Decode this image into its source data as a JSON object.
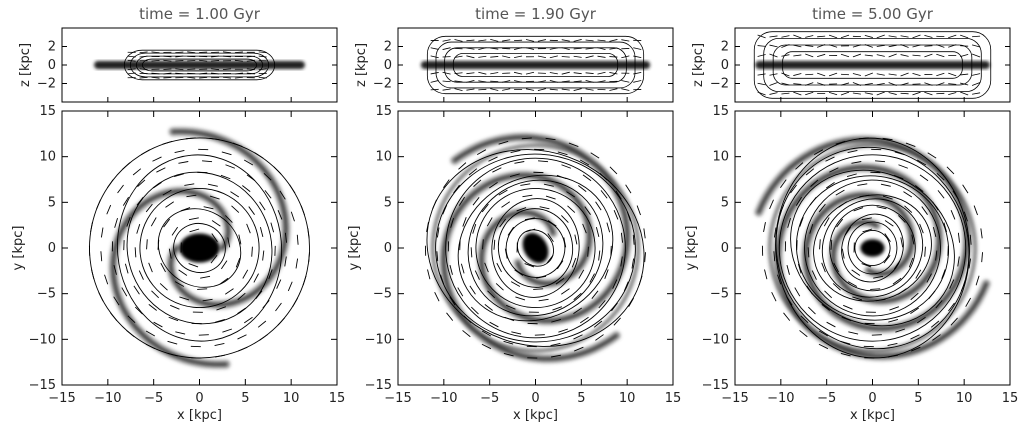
{
  "panels": [
    {
      "title": "time =   1.00 Gyr",
      "gas_structure": "open-spiral-arms",
      "arm_winding": 1.0,
      "core_size": 1.0
    },
    {
      "title": "time =   1.90 Gyr",
      "gas_structure": "tightly-wound-spiral-with-bar",
      "arm_winding": 1.6,
      "core_size": 0.8
    },
    {
      "title": "time =   5.00 Gyr",
      "gas_structure": "ring-dominated-disc",
      "arm_winding": 2.2,
      "core_size": 0.6
    }
  ],
  "axes": {
    "x_label": "x [kpc]",
    "y_label": "y [kpc]",
    "z_label": "z [kpc]",
    "x_ticks": [
      "−15",
      "−10",
      "−5",
      "0",
      "5",
      "10",
      "15"
    ],
    "x_ticks_last_panel": [
      "−15",
      "−10",
      "−5",
      "0",
      "5",
      "10",
      "15"
    ],
    "y_ticks": [
      "15",
      "10",
      "5",
      "0",
      "−5",
      "−10",
      "−15"
    ],
    "z_ticks": [
      "2",
      "0",
      "−2"
    ],
    "xlim": [
      -15,
      15
    ],
    "ylim": [
      -15,
      15
    ],
    "zlim": [
      -4,
      4
    ]
  },
  "colors": {
    "gas": "#000000",
    "background": "#ffffff",
    "title": "#555555"
  }
}
